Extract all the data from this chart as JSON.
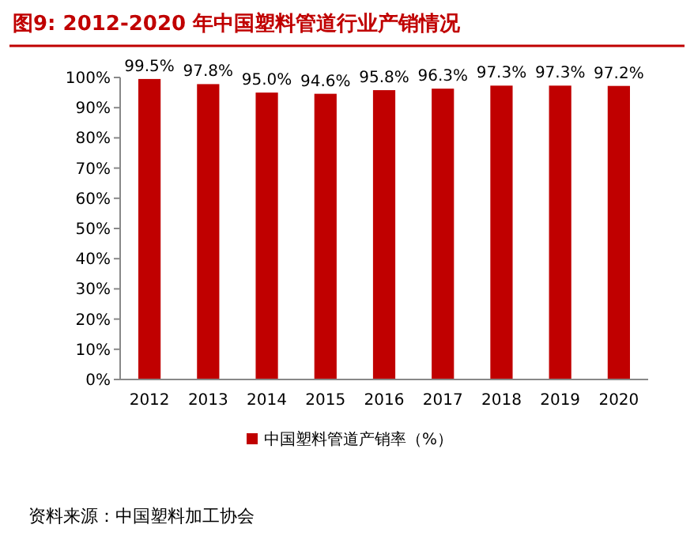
{
  "chart_data": {
    "type": "bar",
    "title": "图9:  2012-2020 年中国塑料管道行业产销情况",
    "categories": [
      "2012",
      "2013",
      "2014",
      "2015",
      "2016",
      "2017",
      "2018",
      "2019",
      "2020"
    ],
    "series": [
      {
        "name": "中国塑料管道产销率（%）",
        "color": "#c00000",
        "values": [
          99.5,
          97.8,
          95.0,
          94.6,
          95.8,
          96.3,
          97.3,
          97.3,
          97.2
        ]
      }
    ],
    "value_labels": [
      "99.5%",
      "97.8%",
      "95.0%",
      "94.6%",
      "95.8%",
      "96.3%",
      "97.3%",
      "97.3%",
      "97.2%"
    ],
    "ylim": [
      0,
      100
    ],
    "yticks": [
      {
        "value": 0,
        "label": "0%"
      },
      {
        "value": 10,
        "label": "10%"
      },
      {
        "value": 20,
        "label": "20%"
      },
      {
        "value": 30,
        "label": "30%"
      },
      {
        "value": 40,
        "label": "40%"
      },
      {
        "value": 50,
        "label": "50%"
      },
      {
        "value": 60,
        "label": "60%"
      },
      {
        "value": 70,
        "label": "70%"
      },
      {
        "value": 80,
        "label": "80%"
      },
      {
        "value": 90,
        "label": "90%"
      },
      {
        "value": 100,
        "label": "100%"
      }
    ],
    "grid": false,
    "legend": "bottom",
    "annotations": [
      "资料来源：中国塑料加工协会"
    ]
  }
}
